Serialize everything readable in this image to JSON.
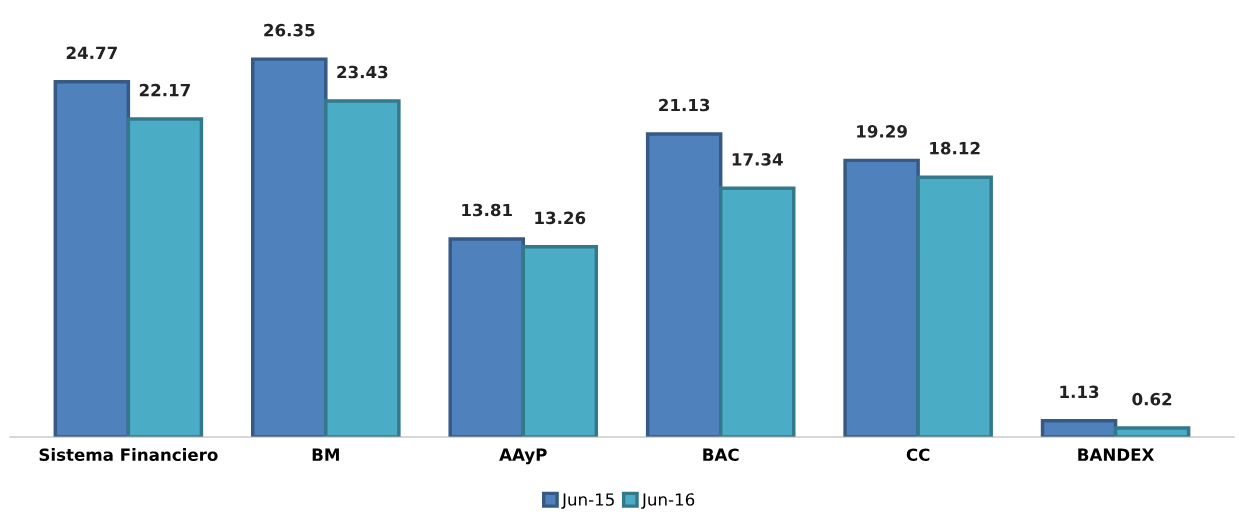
{
  "chart_data": {
    "type": "bar",
    "categories": [
      "Sistema Financiero",
      "BM",
      "AAyP",
      "BAC",
      "CC",
      "BANDEX"
    ],
    "series": [
      {
        "name": "Jun-15",
        "color": "#4f81bd",
        "values": [
          24.77,
          26.35,
          13.81,
          21.13,
          19.29,
          1.13
        ]
      },
      {
        "name": "Jun-16",
        "color": "#4bacc6",
        "values": [
          22.17,
          23.43,
          13.26,
          17.34,
          18.12,
          0.62
        ]
      }
    ],
    "data_labels": true,
    "legend": "bottom",
    "grid": false
  }
}
